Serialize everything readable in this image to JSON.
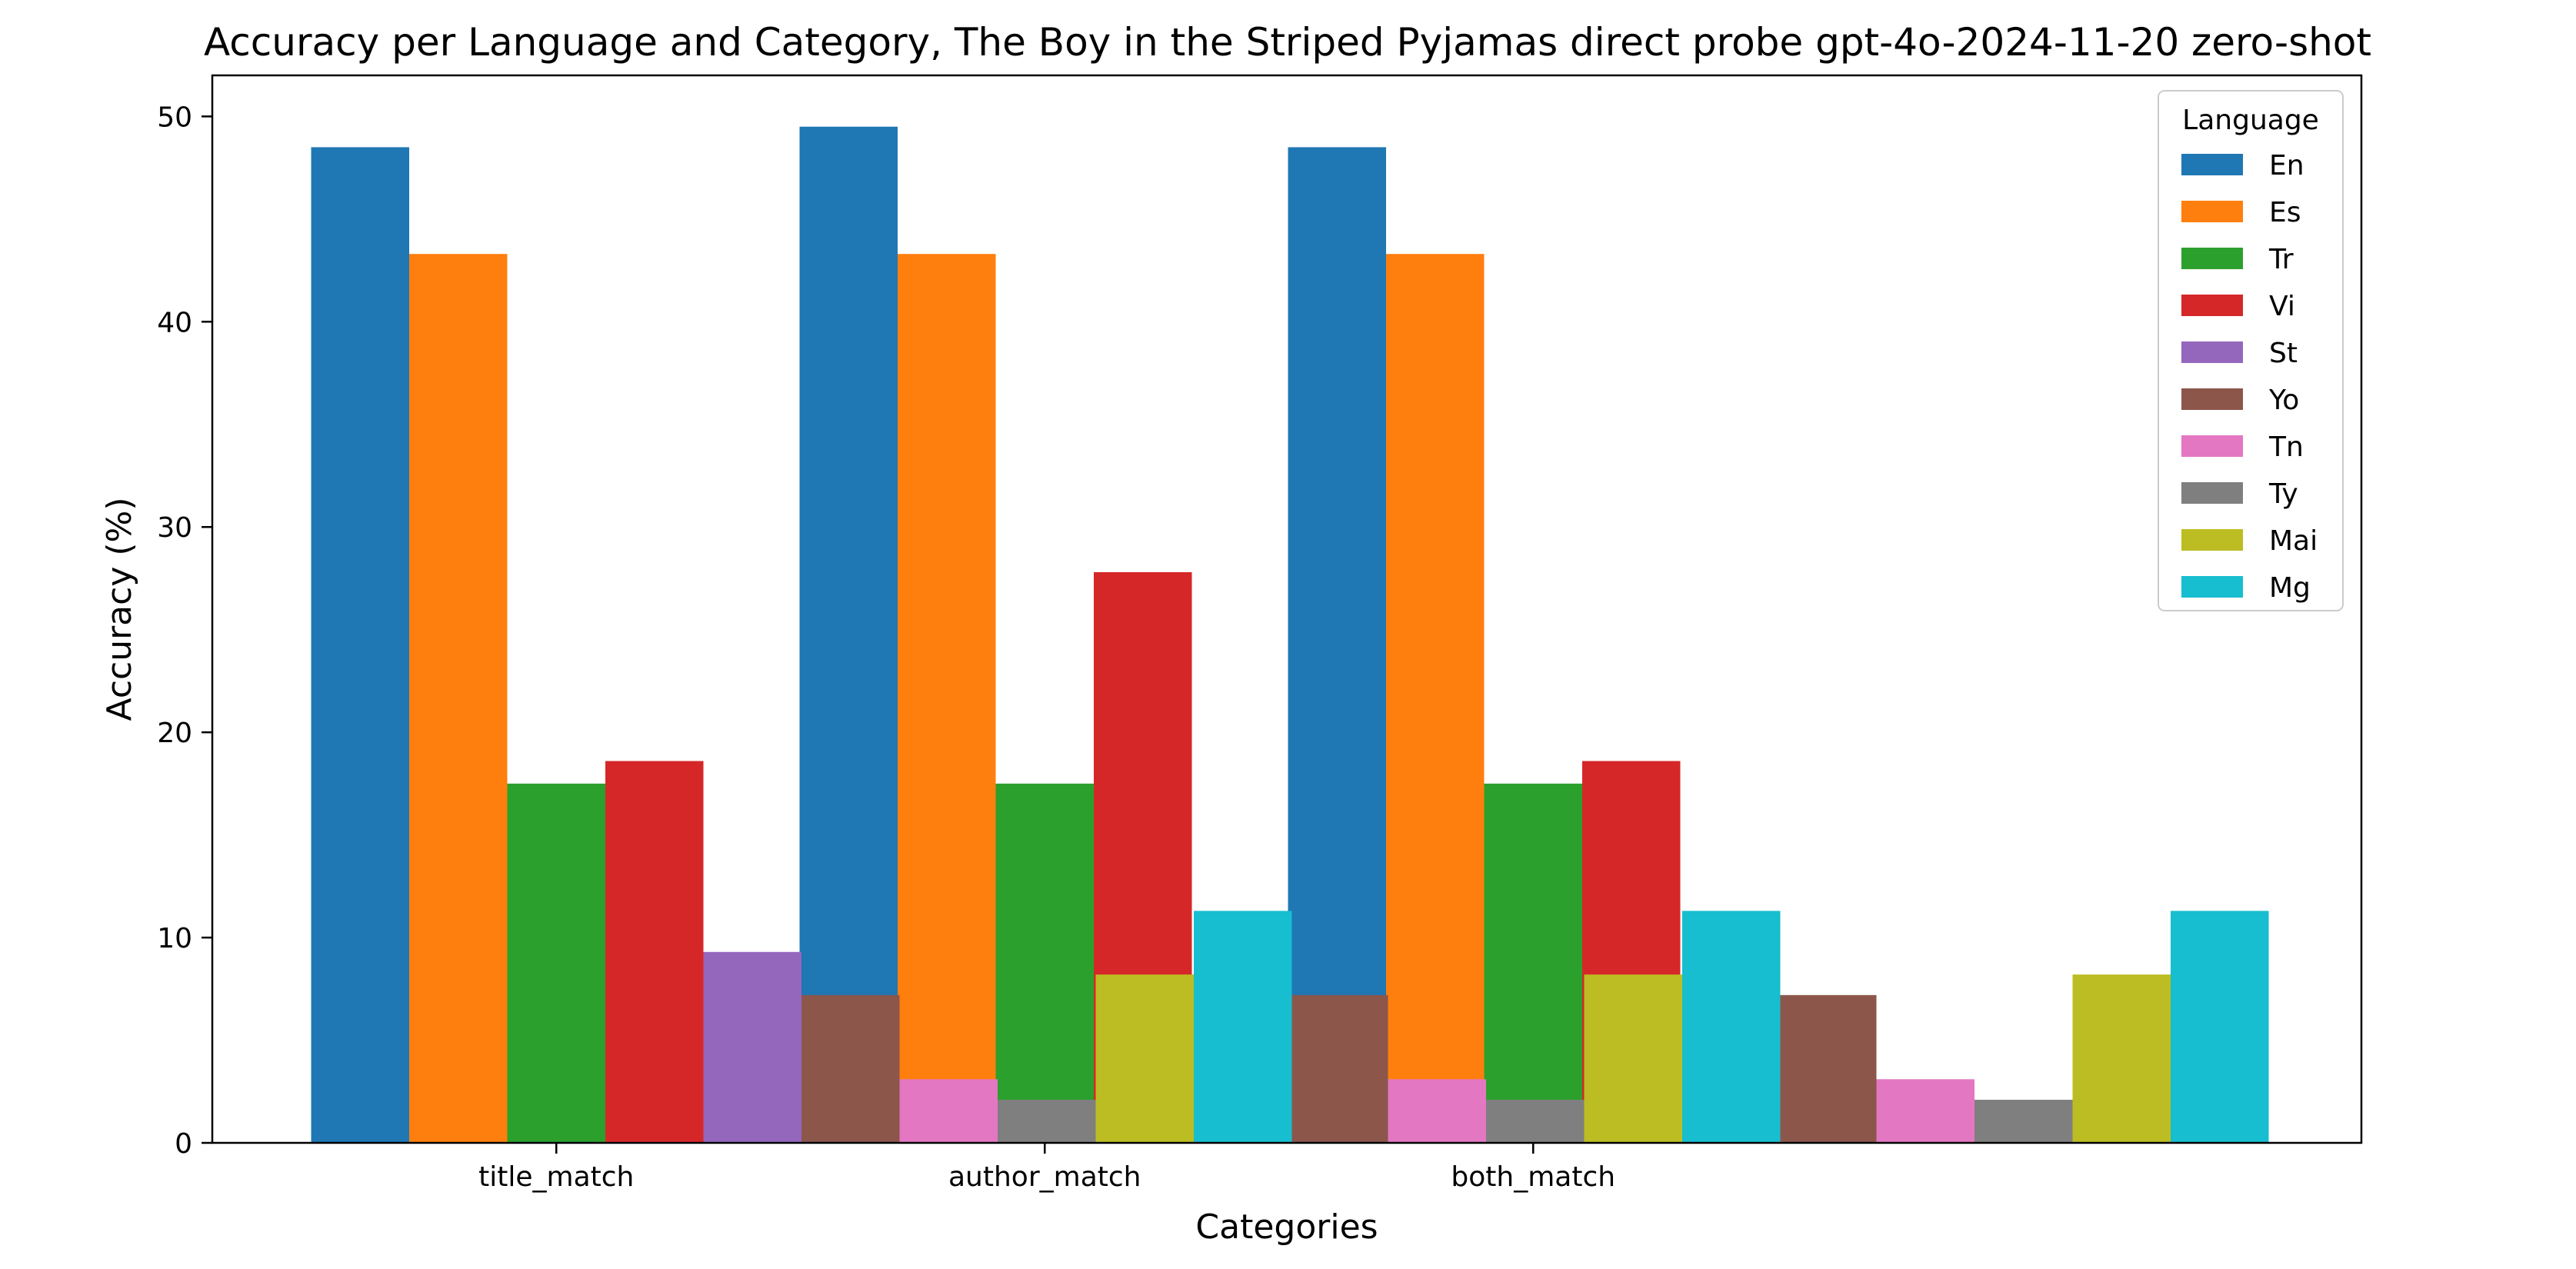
{
  "chart_data": {
    "type": "bar",
    "title": "Accuracy per Language and Category, The Boy in the Striped Pyjamas direct probe gpt-4o-2024-11-20 zero-shot",
    "xlabel": "Categories",
    "ylabel": "Accuracy (%)",
    "ylim": [
      0,
      52
    ],
    "yticks": [
      "0",
      "10",
      "20",
      "30",
      "40",
      "50"
    ],
    "categories": [
      "title_match",
      "author_match",
      "both_match"
    ],
    "grid": false,
    "legend": {
      "title": "Language",
      "placement": "top-right"
    },
    "series": [
      {
        "name": "En",
        "color": "#1f77b4",
        "values": [
          48.5,
          49.5,
          48.5
        ]
      },
      {
        "name": "Es",
        "color": "#ff7f0e",
        "values": [
          43.3,
          43.3,
          43.3
        ]
      },
      {
        "name": "Tr",
        "color": "#2ca02c",
        "values": [
          17.5,
          17.5,
          17.5
        ]
      },
      {
        "name": "Vi",
        "color": "#d62728",
        "values": [
          18.6,
          27.8,
          18.6
        ]
      },
      {
        "name": "St",
        "color": "#9467bd",
        "values": [
          9.3,
          0,
          0
        ]
      },
      {
        "name": "Yo",
        "color": "#8c564b",
        "values": [
          7.2,
          7.2,
          7.2
        ]
      },
      {
        "name": "Tn",
        "color": "#e377c2",
        "values": [
          3.1,
          3.1,
          3.1
        ]
      },
      {
        "name": "Ty",
        "color": "#7f7f7f",
        "values": [
          2.1,
          2.1,
          2.1
        ]
      },
      {
        "name": "Mai",
        "color": "#bcbd22",
        "values": [
          8.2,
          8.2,
          8.2
        ]
      },
      {
        "name": "Mg",
        "color": "#17becf",
        "values": [
          11.3,
          11.3,
          11.3
        ]
      }
    ]
  }
}
